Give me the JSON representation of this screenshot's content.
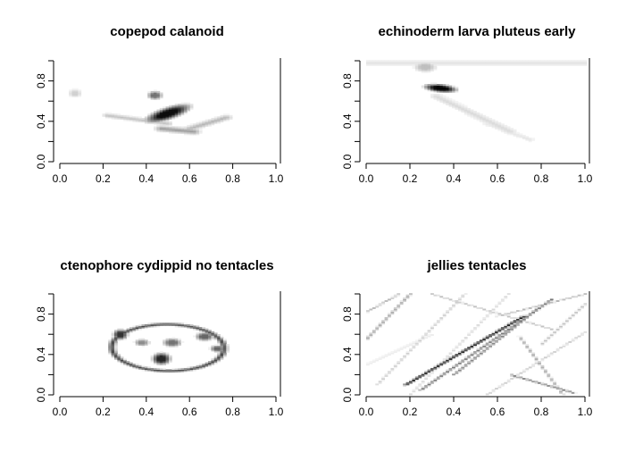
{
  "chart_data": [
    {
      "type": "heatmap",
      "title": "copepod calanoid",
      "xlabel": "",
      "ylabel": "",
      "xlim": [
        0,
        1
      ],
      "ylim": [
        0,
        1
      ],
      "x_ticks": [
        "0.0",
        "0.2",
        "0.4",
        "0.6",
        "0.8",
        "1.0"
      ],
      "y_ticks": [
        "0.0",
        "0.4",
        "0.8"
      ],
      "colors": {
        "low": "#ffffff",
        "high": "#000000"
      },
      "regions": [
        {
          "kind": "blob",
          "cx": 0.07,
          "cy": 0.68,
          "rx": 0.035,
          "ry": 0.05,
          "density": 0.18
        },
        {
          "kind": "blob",
          "cx": 0.5,
          "cy": 0.48,
          "rx": 0.06,
          "ry": 0.15,
          "rot": -50,
          "density": 0.95
        },
        {
          "kind": "blob",
          "cx": 0.44,
          "cy": 0.66,
          "rx": 0.04,
          "ry": 0.05,
          "density": 0.55
        },
        {
          "kind": "line",
          "x1": 0.22,
          "y1": 0.46,
          "x2": 0.5,
          "y2": 0.38,
          "width": 0.03,
          "density": 0.25
        },
        {
          "kind": "line",
          "x1": 0.47,
          "y1": 0.33,
          "x2": 0.62,
          "y2": 0.3,
          "width": 0.04,
          "density": 0.4
        },
        {
          "kind": "line",
          "x1": 0.6,
          "y1": 0.33,
          "x2": 0.77,
          "y2": 0.44,
          "width": 0.035,
          "density": 0.3
        }
      ]
    },
    {
      "type": "heatmap",
      "title": "echinoderm larva pluteus early",
      "xlabel": "",
      "ylabel": "",
      "xlim": [
        0,
        1
      ],
      "ylim": [
        0,
        1
      ],
      "x_ticks": [
        "0.0",
        "0.2",
        "0.4",
        "0.6",
        "0.8",
        "1.0"
      ],
      "y_ticks": [
        "0.0",
        "0.4",
        "0.8"
      ],
      "colors": {
        "low": "#ffffff",
        "high": "#000000"
      },
      "regions": [
        {
          "kind": "line",
          "x1": 0.0,
          "y1": 0.98,
          "x2": 1.0,
          "y2": 0.98,
          "width": 0.04,
          "density": 0.12
        },
        {
          "kind": "blob",
          "cx": 0.27,
          "cy": 0.94,
          "rx": 0.06,
          "ry": 0.06,
          "density": 0.25
        },
        {
          "kind": "blob",
          "cx": 0.34,
          "cy": 0.73,
          "rx": 0.09,
          "ry": 0.045,
          "rot": -15,
          "density": 0.98
        },
        {
          "kind": "line",
          "x1": 0.32,
          "y1": 0.65,
          "x2": 0.66,
          "y2": 0.3,
          "width": 0.04,
          "density": 0.15
        },
        {
          "kind": "line",
          "x1": 0.55,
          "y1": 0.38,
          "x2": 0.75,
          "y2": 0.22,
          "width": 0.03,
          "density": 0.1
        }
      ]
    },
    {
      "type": "heatmap",
      "title": "ctenophore cydippid no tentacles",
      "xlabel": "",
      "ylabel": "",
      "xlim": [
        0,
        1
      ],
      "ylim": [
        0,
        1
      ],
      "x_ticks": [
        "0.0",
        "0.2",
        "0.4",
        "0.6",
        "0.8",
        "1.0"
      ],
      "y_ticks": [
        "0.0",
        "0.4",
        "0.8"
      ],
      "colors": {
        "low": "#ffffff",
        "high": "#000000"
      },
      "regions": [
        {
          "kind": "ring",
          "cx": 0.5,
          "cy": 0.47,
          "rx": 0.26,
          "ry": 0.23,
          "rot": -5,
          "width": 0.02,
          "density": 0.75
        },
        {
          "kind": "blob",
          "cx": 0.28,
          "cy": 0.6,
          "rx": 0.04,
          "ry": 0.06,
          "density": 0.8
        },
        {
          "kind": "blob",
          "cx": 0.47,
          "cy": 0.36,
          "rx": 0.05,
          "ry": 0.07,
          "density": 0.85
        },
        {
          "kind": "blob",
          "cx": 0.52,
          "cy": 0.52,
          "rx": 0.05,
          "ry": 0.05,
          "density": 0.55
        },
        {
          "kind": "blob",
          "cx": 0.67,
          "cy": 0.58,
          "rx": 0.05,
          "ry": 0.05,
          "density": 0.6
        },
        {
          "kind": "blob",
          "cx": 0.73,
          "cy": 0.46,
          "rx": 0.04,
          "ry": 0.04,
          "density": 0.6
        },
        {
          "kind": "blob",
          "cx": 0.38,
          "cy": 0.52,
          "rx": 0.04,
          "ry": 0.04,
          "density": 0.45
        }
      ]
    },
    {
      "type": "heatmap",
      "title": "jellies tentacles",
      "xlabel": "",
      "ylabel": "",
      "xlim": [
        0,
        1
      ],
      "ylim": [
        0,
        1
      ],
      "x_ticks": [
        "0.0",
        "0.2",
        "0.4",
        "0.6",
        "0.8",
        "1.0"
      ],
      "y_ticks": [
        "0.0",
        "0.4",
        "0.8"
      ],
      "colors": {
        "low": "#ffffff",
        "high": "#000000"
      },
      "regions": [
        {
          "kind": "line",
          "x1": 0.18,
          "y1": 0.1,
          "x2": 0.72,
          "y2": 0.78,
          "width": 0.012,
          "density": 0.95
        },
        {
          "kind": "line",
          "x1": 0.25,
          "y1": 0.05,
          "x2": 0.85,
          "y2": 0.95,
          "width": 0.01,
          "density": 0.55
        },
        {
          "kind": "line",
          "x1": 0.4,
          "y1": 0.2,
          "x2": 0.78,
          "y2": 0.85,
          "width": 0.01,
          "density": 0.5
        },
        {
          "kind": "line",
          "x1": 0.0,
          "y1": 0.55,
          "x2": 0.2,
          "y2": 1.0,
          "width": 0.01,
          "density": 0.35
        },
        {
          "kind": "line",
          "x1": 0.05,
          "y1": 0.1,
          "x2": 0.45,
          "y2": 1.0,
          "width": 0.008,
          "density": 0.2
        },
        {
          "kind": "line",
          "x1": 0.0,
          "y1": 0.82,
          "x2": 0.15,
          "y2": 1.0,
          "width": 0.008,
          "density": 0.3
        },
        {
          "kind": "line",
          "x1": 0.2,
          "y1": 0.0,
          "x2": 0.65,
          "y2": 1.0,
          "width": 0.008,
          "density": 0.15
        },
        {
          "kind": "line",
          "x1": 0.55,
          "y1": 0.0,
          "x2": 1.0,
          "y2": 0.62,
          "width": 0.008,
          "density": 0.2
        },
        {
          "kind": "line",
          "x1": 0.6,
          "y1": 0.78,
          "x2": 1.0,
          "y2": 1.0,
          "width": 0.008,
          "density": 0.3
        },
        {
          "kind": "line",
          "x1": 0.66,
          "y1": 0.2,
          "x2": 0.95,
          "y2": 0.02,
          "width": 0.01,
          "density": 0.5
        },
        {
          "kind": "line",
          "x1": 0.7,
          "y1": 0.58,
          "x2": 0.9,
          "y2": 0.0,
          "width": 0.008,
          "density": 0.35
        },
        {
          "kind": "line",
          "x1": 0.8,
          "y1": 0.5,
          "x2": 1.0,
          "y2": 0.9,
          "width": 0.008,
          "density": 0.25
        },
        {
          "kind": "line",
          "x1": 0.3,
          "y1": 1.0,
          "x2": 0.85,
          "y2": 0.65,
          "width": 0.008,
          "density": 0.25
        },
        {
          "kind": "line",
          "x1": 0.0,
          "y1": 0.3,
          "x2": 0.3,
          "y2": 0.6,
          "width": 0.008,
          "density": 0.15
        }
      ]
    }
  ]
}
